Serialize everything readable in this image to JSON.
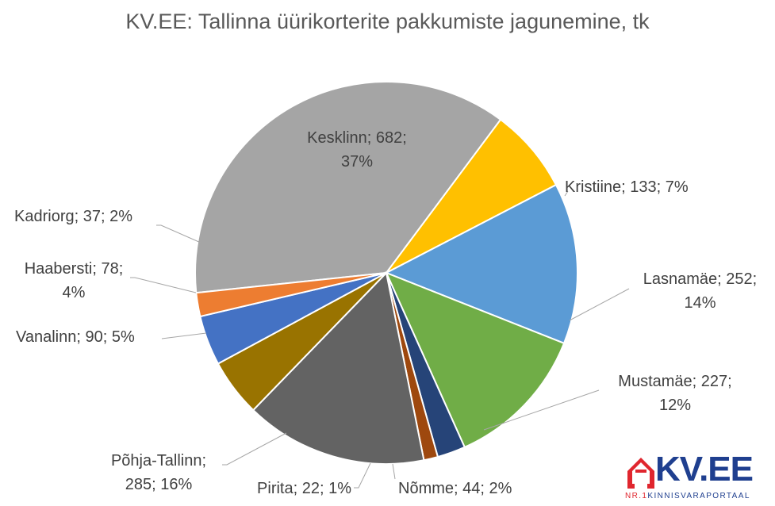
{
  "chart_data": {
    "type": "pie",
    "title": "KV.EE: Tallinna üürikorterite pakkumiste jagunemine, tk",
    "slices": [
      {
        "name": "Kesklinn",
        "value": 682,
        "percent": "37%",
        "color": "#a5a5a5"
      },
      {
        "name": "Kristiine",
        "value": 133,
        "percent": "7%",
        "color": "#ffc000"
      },
      {
        "name": "Lasnamäe",
        "value": 252,
        "percent": "14%",
        "color": "#5b9bd5"
      },
      {
        "name": "Mustamäe",
        "value": 227,
        "percent": "12%",
        "color": "#70ad47"
      },
      {
        "name": "Nõmme",
        "value": 44,
        "percent": "2%",
        "color": "#264478"
      },
      {
        "name": "Pirita",
        "value": 22,
        "percent": "1%",
        "color": "#9e480e"
      },
      {
        "name": "Põhja-Tallinn",
        "value": 285,
        "percent": "16%",
        "color": "#636363"
      },
      {
        "name": "Vanalinn",
        "value": 90,
        "percent": "5%",
        "color": "#997300"
      },
      {
        "name": "Haabersti",
        "value": 78,
        "percent": "4%",
        "color": "#4472c4"
      },
      {
        "name": "Kadriorg",
        "value": 37,
        "percent": "2%",
        "color": "#ed7d31"
      }
    ],
    "labels": {
      "kesklinn": {
        "line1": "Kesklinn; 682;",
        "line2": "37%"
      },
      "kristiine": {
        "line1": "Kristiine; 133; 7%"
      },
      "lasnamae": {
        "line1": "Lasnamäe; 252;",
        "line2": "14%"
      },
      "mustamae": {
        "line1": "Mustamäe; 227;",
        "line2": "12%"
      },
      "nomme": {
        "line1": "Nõmme; 44; 2%"
      },
      "pirita": {
        "line1": "Pirita; 22; 1%"
      },
      "pohja": {
        "line1": "Põhja-Tallinn;",
        "line2": "285; 16%"
      },
      "vanalinn": {
        "line1": "Vanalinn; 90; 5%"
      },
      "haabersti": {
        "line1": "Haabersti; 78;",
        "line2": "4%"
      },
      "kadriorg": {
        "line1": "Kadriorg; 37; 2%"
      }
    }
  },
  "logo": {
    "text": "KV.EE",
    "sub_prefix": "NR.1",
    "sub_text": "KINNISVARAPORTAAL",
    "brand_blue": "#1f3f8f",
    "brand_red": "#e0262e"
  }
}
